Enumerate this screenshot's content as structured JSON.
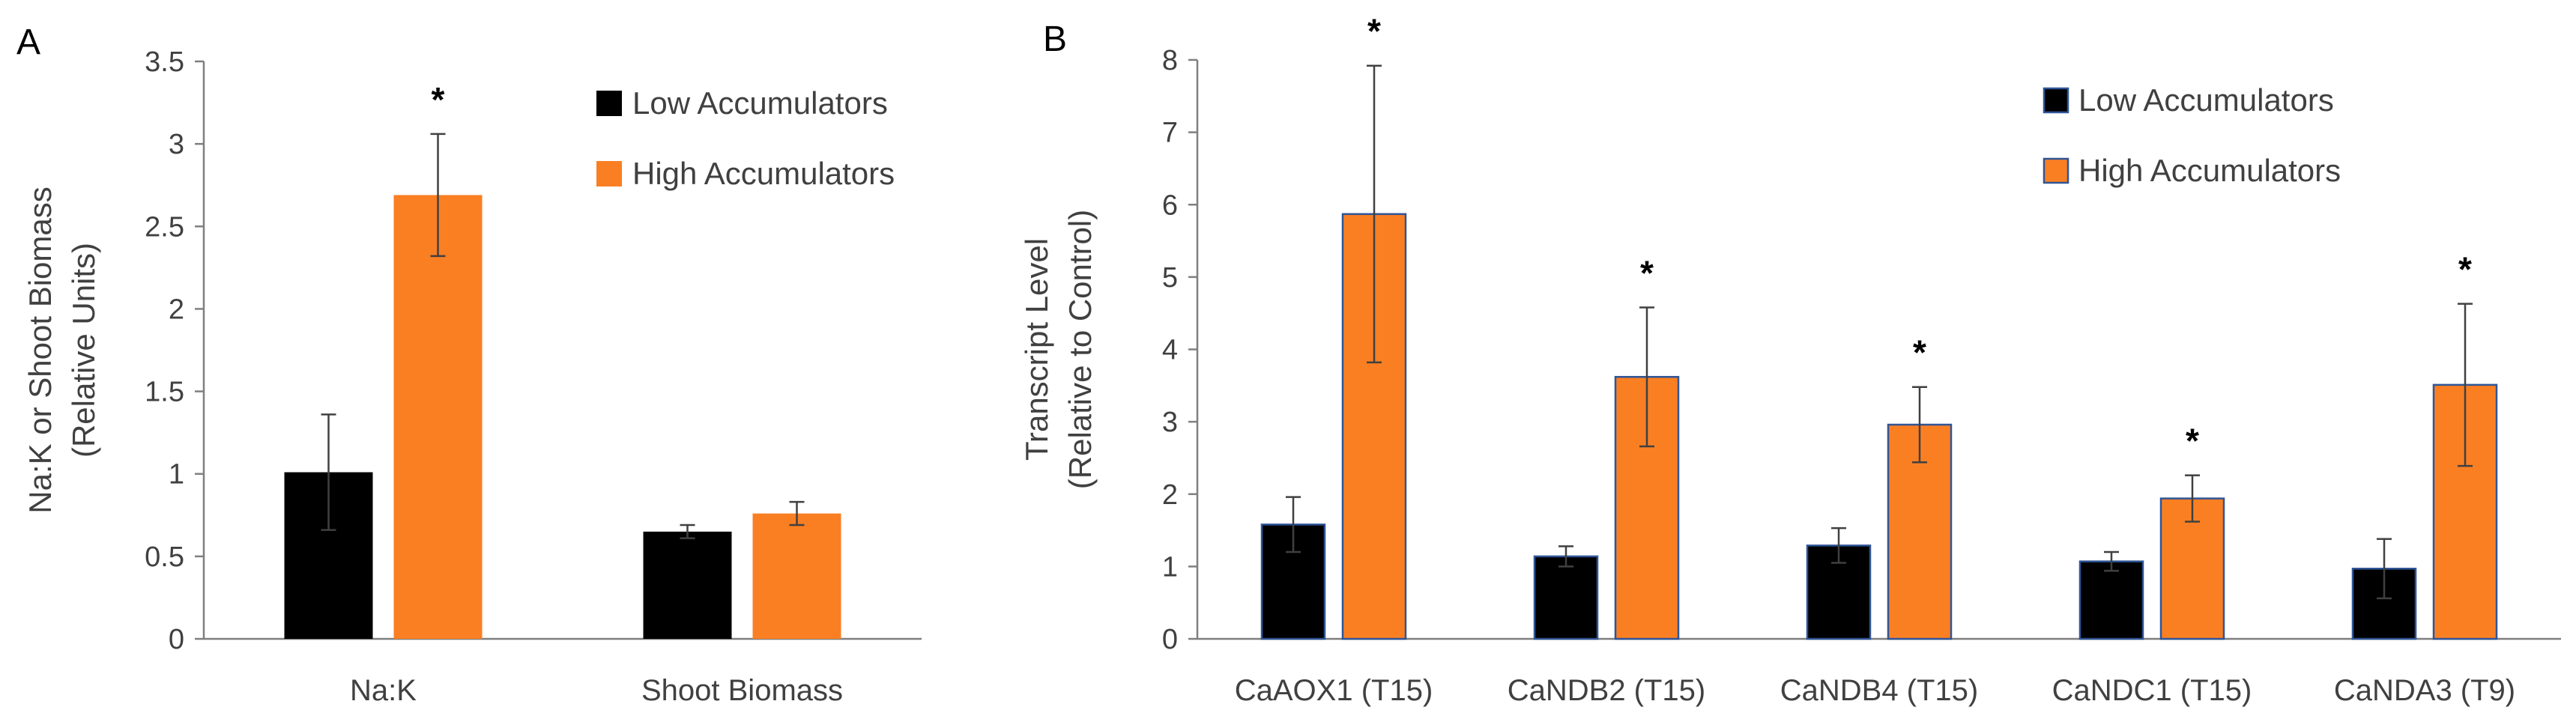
{
  "chart_data": [
    {
      "panel_label": "A",
      "type": "bar",
      "title": "",
      "xlabel": "",
      "ylabel_lines": [
        "Na:K or Shoot Biomass",
        "(Relative Units)"
      ],
      "ylim": [
        0,
        3.5
      ],
      "yticks": [
        0,
        0.5,
        1,
        1.5,
        2,
        2.5,
        3,
        3.5
      ],
      "ytick_labels": [
        "0",
        "0.5",
        "1",
        "1.5",
        "2",
        "2.5",
        "3",
        "3.5"
      ],
      "categories": [
        "Na:K",
        "Shoot Biomass"
      ],
      "series": [
        {
          "name": "Low Accumulators",
          "color": "#000000",
          "values": [
            1.01,
            0.65
          ],
          "errors": [
            0.35,
            0.04
          ]
        },
        {
          "name": "High Accumulators",
          "color": "#fa7f23",
          "values": [
            2.69,
            0.76
          ],
          "errors": [
            0.37,
            0.07
          ]
        }
      ],
      "significance": [
        {
          "category_index": 0,
          "series_index": 1,
          "label": "*"
        }
      ],
      "grid": false,
      "legend_position": "top-right"
    },
    {
      "panel_label": "B",
      "type": "bar",
      "title": "",
      "xlabel": "",
      "ylabel_lines": [
        "Transcript Level",
        "(Relative to Control)"
      ],
      "ylim": [
        0,
        8
      ],
      "yticks": [
        0,
        1,
        2,
        3,
        4,
        5,
        6,
        7,
        8
      ],
      "ytick_labels": [
        "0",
        "1",
        "2",
        "3",
        "4",
        "5",
        "6",
        "7",
        "8"
      ],
      "categories": [
        "CaAOX1 (T15)",
        "CaNDB2 (T15)",
        "CaNDB4 (T15)",
        "CaNDC1 (T15)",
        "CaNDA3 (T9)"
      ],
      "series": [
        {
          "name": "Low Accumulators",
          "color": "#000000",
          "values": [
            1.58,
            1.14,
            1.29,
            1.07,
            0.97
          ],
          "errors": [
            0.38,
            0.14,
            0.24,
            0.13,
            0.41
          ]
        },
        {
          "name": "High Accumulators",
          "color": "#fa7f23",
          "values": [
            5.87,
            3.62,
            2.96,
            1.94,
            3.51
          ],
          "errors": [
            2.05,
            0.96,
            0.52,
            0.32,
            1.12
          ]
        }
      ],
      "significance": [
        {
          "category_index": 0,
          "series_index": 1,
          "label": "*"
        },
        {
          "category_index": 1,
          "series_index": 1,
          "label": "*"
        },
        {
          "category_index": 2,
          "series_index": 1,
          "label": "*"
        },
        {
          "category_index": 3,
          "series_index": 1,
          "label": "*"
        },
        {
          "category_index": 4,
          "series_index": 1,
          "label": "*"
        }
      ],
      "grid": false,
      "legend_position": "top-right"
    }
  ],
  "colors": {
    "axis": "#7f7f7f",
    "text": "#404040",
    "error_bar": "#404040",
    "bar_outline_b": "#2f5597"
  }
}
